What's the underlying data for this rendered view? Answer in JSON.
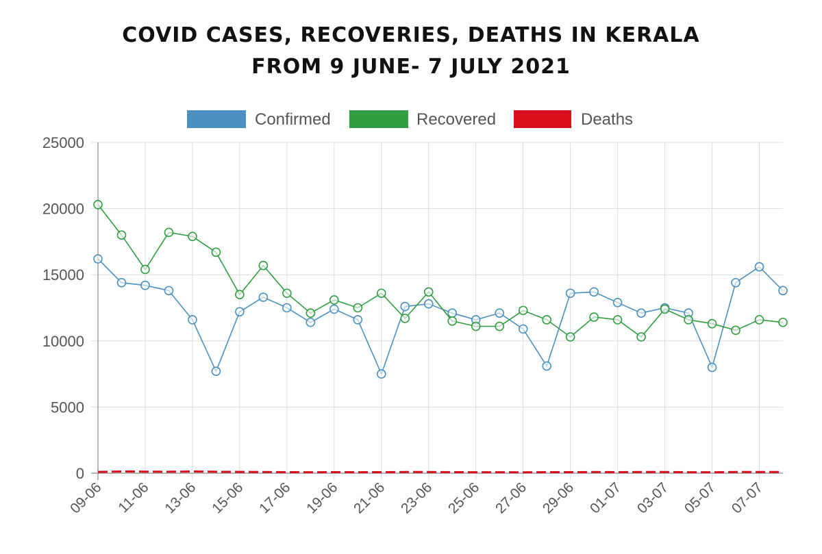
{
  "title_line1": "COVID CASES, RECOVERIES, DEATHS IN KERALA",
  "title_line2": "FROM 9 JUNE- 7 JULY 2021",
  "chart_data": {
    "type": "line",
    "title": "COVID CASES, RECOVERIES, DEATHS IN KERALA FROM 9 JUNE- 7 JULY 2021",
    "xlabel": "",
    "ylabel": "",
    "ylim": [
      0,
      25000
    ],
    "yticks": [
      0,
      5000,
      10000,
      15000,
      20000,
      25000
    ],
    "grid": true,
    "legend_position": "top",
    "categories": [
      "09-06",
      "10-06",
      "11-06",
      "12-06",
      "13-06",
      "14-06",
      "15-06",
      "16-06",
      "17-06",
      "18-06",
      "19-06",
      "20-06",
      "21-06",
      "22-06",
      "23-06",
      "24-06",
      "25-06",
      "26-06",
      "27-06",
      "28-06",
      "29-06",
      "30-06",
      "01-07",
      "02-07",
      "03-07",
      "04-07",
      "05-07",
      "06-07",
      "07-07",
      "08-07"
    ],
    "xticks_shown": [
      "09-06",
      "11-06",
      "13-06",
      "15-06",
      "17-06",
      "19-06",
      "21-06",
      "23-06",
      "25-06",
      "27-06",
      "29-06",
      "01-07",
      "03-07",
      "05-07",
      "07-07"
    ],
    "series": [
      {
        "name": "Confirmed",
        "color": "#4a90c0",
        "values": [
          16200,
          14400,
          14200,
          13800,
          11600,
          7700,
          12200,
          13300,
          12500,
          11400,
          12400,
          11600,
          7500,
          12600,
          12800,
          12100,
          11600,
          12100,
          10900,
          8100,
          13600,
          13700,
          12900,
          12100,
          12500,
          12100,
          8000,
          14400,
          15600,
          13800
        ]
      },
      {
        "name": "Recovered",
        "color": "#2e9e40",
        "values": [
          20300,
          18000,
          15400,
          18200,
          17900,
          16700,
          13500,
          15700,
          13600,
          12100,
          13100,
          12500,
          13600,
          11700,
          13700,
          11500,
          11100,
          11100,
          12300,
          11600,
          10300,
          11800,
          11600,
          10300,
          12400,
          11600,
          11300,
          10800,
          11600,
          11400
        ]
      },
      {
        "name": "Deaths",
        "color": "#d8101c",
        "values": [
          100,
          130,
          120,
          110,
          130,
          110,
          100,
          90,
          80,
          70,
          80,
          70,
          80,
          90,
          90,
          80,
          70,
          70,
          60,
          80,
          80,
          90,
          80,
          90,
          90,
          70,
          70,
          90,
          90,
          90
        ]
      }
    ]
  }
}
